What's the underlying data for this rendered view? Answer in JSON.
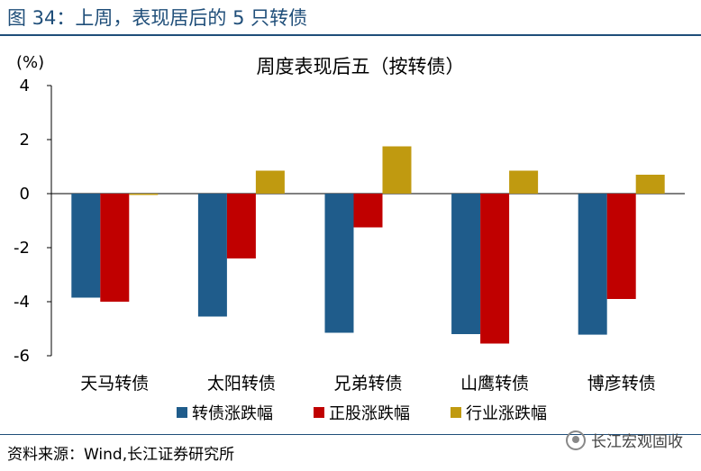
{
  "header": {
    "figure_title": "图 34：上周，表现居后的 5 只转债"
  },
  "footer": {
    "source": "资料来源：Wind,长江证券研究所",
    "watermark": "长江宏观固收"
  },
  "colors": {
    "series": [
      "#1f5c8b",
      "#c00000",
      "#c09a10"
    ],
    "title": "#1f4e79"
  },
  "chart_data": {
    "type": "bar",
    "title": "周度表现后五（按转债）",
    "ylabel": "(%)",
    "ylim": [
      -6,
      4
    ],
    "yticks": [
      4,
      2,
      0,
      -2,
      -4,
      -6
    ],
    "categories": [
      "天马转债",
      "太阳转债",
      "兄弟转债",
      "山鹰转债",
      "博彦转债"
    ],
    "series": [
      {
        "name": "转债涨跌幅",
        "values": [
          -3.85,
          -4.55,
          -5.15,
          -5.2,
          -5.22
        ]
      },
      {
        "name": "正股涨跌幅",
        "values": [
          -4.0,
          -2.4,
          -1.25,
          -5.55,
          -3.9
        ]
      },
      {
        "name": "行业涨跌幅",
        "values": [
          -0.05,
          0.85,
          1.75,
          0.85,
          0.7
        ]
      }
    ],
    "legend_position": "bottom"
  }
}
